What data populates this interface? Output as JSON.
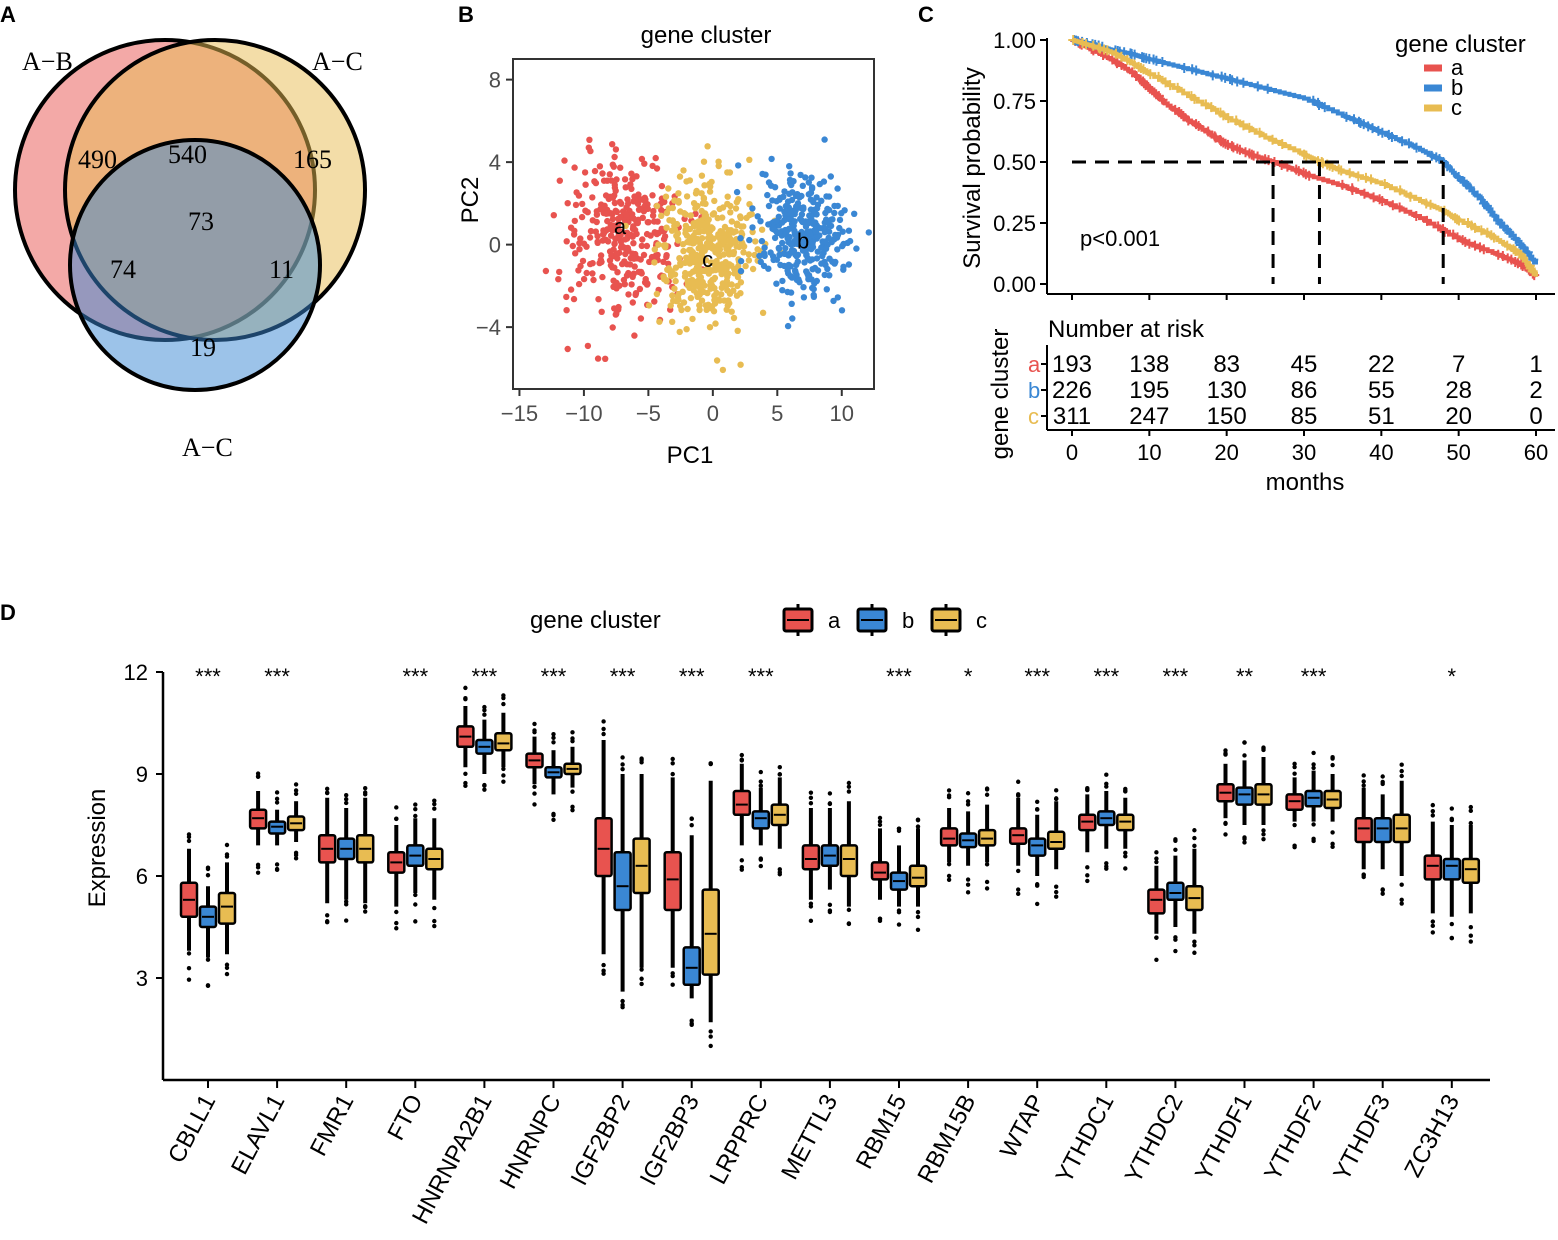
{
  "colors": {
    "a": "#E8534F",
    "b": "#3A87D4",
    "c": "#E8BC52",
    "axis": "#000000"
  },
  "panels": {
    "a": "A",
    "b": "B",
    "c": "C",
    "d": "D"
  },
  "venn": {
    "sets": [
      {
        "label": "A−B",
        "color": "#E8534F"
      },
      {
        "label": "A−C",
        "color": "#E8BC52"
      },
      {
        "label": "A−C",
        "color": "#3A87D4"
      }
    ],
    "regions": {
      "only1": "490",
      "r12": "540",
      "only2": "165",
      "r123": "73",
      "r13": "74",
      "r23": "11",
      "only3": "19"
    }
  },
  "chart_data": [
    {
      "id": "pca",
      "type": "scatter",
      "title": "gene cluster",
      "xlabel": "PC1",
      "ylabel": "PC2",
      "xlim": [
        -15.5,
        12.5
      ],
      "ylim": [
        -7,
        9
      ],
      "xticks": [
        -15,
        -10,
        -5,
        0,
        5,
        10
      ],
      "yticks": [
        -4,
        0,
        4,
        8
      ],
      "xtick_labels": [
        "−15",
        "−10",
        "−5",
        "0",
        "5",
        "10"
      ],
      "ytick_labels": [
        "−4",
        "0",
        "4",
        "8"
      ],
      "clusters": [
        {
          "name": "a",
          "n": 330,
          "center": [
            -7.0,
            0.5
          ],
          "spread": [
            3.0,
            2.6
          ],
          "label_pos": [
            -7.2,
            0.9
          ]
        },
        {
          "name": "c",
          "n": 430,
          "center": [
            -0.5,
            -0.3
          ],
          "spread": [
            2.4,
            2.3
          ],
          "label_pos": [
            -0.4,
            -0.7
          ]
        },
        {
          "name": "b",
          "n": 330,
          "center": [
            7.0,
            0.4
          ],
          "spread": [
            2.4,
            2.0
          ],
          "label_pos": [
            7.0,
            0.2
          ]
        }
      ]
    },
    {
      "id": "survival",
      "type": "line",
      "ylabel": "Survival probability",
      "xlabel": "months",
      "xlim": [
        0,
        62
      ],
      "ylim": [
        0,
        1.05
      ],
      "yticks": [
        0.0,
        0.25,
        0.5,
        0.75,
        1.0
      ],
      "ytick_labels": [
        "0.00",
        "0.25",
        "0.50",
        "0.75",
        "1.00"
      ],
      "xticks": [
        0,
        10,
        20,
        30,
        40,
        50,
        60
      ],
      "xtick_labels": [
        "0",
        "10",
        "20",
        "30",
        "40",
        "50",
        "60"
      ],
      "legend_title": "gene cluster",
      "pvalue": "p<0.001",
      "medians": [
        26,
        32,
        48
      ],
      "series": [
        {
          "name": "a",
          "x": [
            0,
            2,
            5,
            8,
            10,
            12,
            15,
            18,
            20,
            23,
            26,
            30,
            35,
            40,
            45,
            50,
            55,
            58,
            60
          ],
          "y": [
            1.0,
            0.97,
            0.92,
            0.86,
            0.8,
            0.74,
            0.67,
            0.61,
            0.57,
            0.53,
            0.5,
            0.45,
            0.4,
            0.34,
            0.27,
            0.18,
            0.12,
            0.08,
            0.03
          ]
        },
        {
          "name": "b",
          "x": [
            0,
            3,
            5,
            8,
            10,
            15,
            20,
            25,
            30,
            35,
            38,
            40,
            45,
            48,
            50,
            53,
            55,
            58,
            60
          ],
          "y": [
            1.0,
            0.98,
            0.96,
            0.94,
            0.92,
            0.88,
            0.84,
            0.8,
            0.76,
            0.69,
            0.65,
            0.62,
            0.55,
            0.5,
            0.43,
            0.34,
            0.26,
            0.16,
            0.08
          ]
        },
        {
          "name": "c",
          "x": [
            0,
            2,
            5,
            8,
            10,
            15,
            20,
            25,
            30,
            32,
            35,
            40,
            45,
            48,
            50,
            55,
            58,
            60
          ],
          "y": [
            1.0,
            0.98,
            0.95,
            0.9,
            0.86,
            0.77,
            0.68,
            0.6,
            0.53,
            0.5,
            0.46,
            0.41,
            0.34,
            0.3,
            0.26,
            0.18,
            0.12,
            0.03
          ]
        }
      ],
      "risk_table": {
        "title": "Number at risk",
        "ylabel": "gene cluster",
        "times": [
          0,
          10,
          20,
          30,
          40,
          50,
          60
        ],
        "rows": [
          {
            "name": "a",
            "values": [
              "193",
              "138",
              "83",
              "45",
              "22",
              "7",
              "1"
            ]
          },
          {
            "name": "b",
            "values": [
              "226",
              "195",
              "130",
              "86",
              "55",
              "28",
              "2"
            ]
          },
          {
            "name": "c",
            "values": [
              "311",
              "247",
              "150",
              "85",
              "51",
              "20",
              "0"
            ]
          }
        ]
      }
    },
    {
      "id": "boxplot",
      "type": "box",
      "ylabel": "Expression",
      "legend_title": "gene cluster",
      "ylim": [
        0,
        12
      ],
      "yticks": [
        3,
        6,
        9,
        12
      ],
      "ytick_labels": [
        "3",
        "6",
        "9",
        "12"
      ],
      "series_names": [
        "a",
        "b",
        "c"
      ],
      "genes": [
        {
          "name": "CBLL1",
          "sig": "***",
          "boxes": [
            [
              3.8,
              4.8,
              5.3,
              5.8,
              6.8
            ],
            [
              3.6,
              4.5,
              4.8,
              5.1,
              5.7
            ],
            [
              3.7,
              4.6,
              5.1,
              5.5,
              6.4
            ]
          ]
        },
        {
          "name": "ELAVL1",
          "sig": "***",
          "boxes": [
            [
              6.9,
              7.4,
              7.7,
              7.95,
              8.5
            ],
            [
              6.9,
              7.25,
              7.45,
              7.6,
              7.95
            ],
            [
              7.0,
              7.35,
              7.55,
              7.75,
              8.2
            ]
          ]
        },
        {
          "name": "FMR1",
          "sig": "",
          "boxes": [
            [
              5.2,
              6.4,
              6.8,
              7.2,
              8.3
            ],
            [
              5.3,
              6.5,
              6.8,
              7.1,
              8.0
            ],
            [
              5.2,
              6.4,
              6.8,
              7.2,
              8.3
            ]
          ]
        },
        {
          "name": "FTO",
          "sig": "***",
          "boxes": [
            [
              5.1,
              6.1,
              6.4,
              6.7,
              7.5
            ],
            [
              5.5,
              6.3,
              6.6,
              6.9,
              7.7
            ],
            [
              5.3,
              6.2,
              6.5,
              6.8,
              7.7
            ]
          ]
        },
        {
          "name": "HNRNPA2B1",
          "sig": "***",
          "boxes": [
            [
              9.2,
              9.8,
              10.1,
              10.4,
              11.0
            ],
            [
              9.0,
              9.6,
              9.8,
              10.0,
              10.6
            ],
            [
              9.2,
              9.7,
              9.9,
              10.2,
              10.8
            ]
          ]
        },
        {
          "name": "HNRNPC",
          "sig": "***",
          "boxes": [
            [
              8.7,
              9.2,
              9.4,
              9.6,
              10.1
            ],
            [
              8.4,
              8.9,
              9.05,
              9.2,
              9.7
            ],
            [
              8.6,
              9.0,
              9.15,
              9.3,
              9.8
            ]
          ]
        },
        {
          "name": "IGF2BP2",
          "sig": "***",
          "boxes": [
            [
              3.7,
              6.0,
              6.8,
              7.7,
              10.0
            ],
            [
              2.6,
              5.0,
              5.7,
              6.7,
              9.0
            ],
            [
              3.3,
              5.5,
              6.3,
              7.1,
              9.0
            ]
          ]
        },
        {
          "name": "IGF2BP3",
          "sig": "***",
          "boxes": [
            [
              3.3,
              5.0,
              5.9,
              6.7,
              8.9
            ],
            [
              2.4,
              2.8,
              3.3,
              3.9,
              7.2
            ],
            [
              1.7,
              3.1,
              4.3,
              5.6,
              8.8
            ]
          ]
        },
        {
          "name": "LRPPRC",
          "sig": "***",
          "boxes": [
            [
              6.9,
              7.8,
              8.1,
              8.5,
              9.3
            ],
            [
              6.9,
              7.4,
              7.7,
              7.9,
              8.6
            ],
            [
              6.8,
              7.5,
              7.8,
              8.1,
              8.9
            ]
          ]
        },
        {
          "name": "METTL3",
          "sig": "",
          "boxes": [
            [
              5.3,
              6.2,
              6.5,
              6.9,
              8.0
            ],
            [
              5.6,
              6.3,
              6.6,
              6.9,
              8.0
            ],
            [
              5.1,
              6.0,
              6.5,
              6.9,
              8.2
            ]
          ]
        },
        {
          "name": "RBM15",
          "sig": "***",
          "boxes": [
            [
              5.3,
              5.9,
              6.1,
              6.4,
              7.4
            ],
            [
              5.1,
              5.6,
              5.85,
              6.1,
              6.9
            ],
            [
              5.1,
              5.7,
              5.95,
              6.3,
              7.4
            ]
          ]
        },
        {
          "name": "RBM15B",
          "sig": "*",
          "boxes": [
            [
              6.4,
              6.9,
              7.1,
              7.4,
              8.0
            ],
            [
              6.3,
              6.85,
              7.05,
              7.25,
              7.9
            ],
            [
              6.4,
              6.9,
              7.1,
              7.35,
              8.1
            ]
          ]
        },
        {
          "name": "WTAP",
          "sig": "***",
          "boxes": [
            [
              6.3,
              6.95,
              7.2,
              7.4,
              8.3
            ],
            [
              6.0,
              6.6,
              6.9,
              7.1,
              7.8
            ],
            [
              6.2,
              6.8,
              7.0,
              7.3,
              8.2
            ]
          ]
        },
        {
          "name": "YTHDC1",
          "sig": "***",
          "boxes": [
            [
              6.7,
              7.35,
              7.6,
              7.8,
              8.4
            ],
            [
              6.8,
              7.5,
              7.7,
              7.9,
              8.5
            ],
            [
              6.8,
              7.35,
              7.6,
              7.8,
              8.3
            ]
          ]
        },
        {
          "name": "YTHDC2",
          "sig": "***",
          "boxes": [
            [
              4.3,
              4.9,
              5.3,
              5.6,
              6.3
            ],
            [
              4.5,
              5.3,
              5.5,
              5.8,
              6.6
            ],
            [
              4.3,
              5.0,
              5.35,
              5.7,
              6.8
            ]
          ]
        },
        {
          "name": "YTHDF1",
          "sig": "**",
          "boxes": [
            [
              7.7,
              8.2,
              8.45,
              8.7,
              9.3
            ],
            [
              7.5,
              8.1,
              8.4,
              8.6,
              9.4
            ],
            [
              7.5,
              8.1,
              8.4,
              8.7,
              9.5
            ]
          ]
        },
        {
          "name": "YTHDF2",
          "sig": "***",
          "boxes": [
            [
              7.6,
              7.95,
              8.2,
              8.4,
              8.9
            ],
            [
              7.6,
              8.05,
              8.3,
              8.5,
              9.1
            ],
            [
              7.6,
              8.0,
              8.25,
              8.5,
              9.0
            ]
          ]
        },
        {
          "name": "YTHDF3",
          "sig": "",
          "boxes": [
            [
              6.2,
              7.0,
              7.4,
              7.7,
              8.6
            ],
            [
              6.2,
              7.0,
              7.4,
              7.7,
              8.4
            ],
            [
              6.0,
              7.0,
              7.4,
              7.8,
              8.8
            ]
          ]
        },
        {
          "name": "ZC3H13",
          "sig": "*",
          "boxes": [
            [
              4.9,
              5.9,
              6.3,
              6.6,
              7.6
            ],
            [
              4.8,
              5.9,
              6.3,
              6.5,
              7.5
            ],
            [
              4.9,
              5.8,
              6.2,
              6.5,
              7.5
            ]
          ]
        }
      ]
    }
  ]
}
